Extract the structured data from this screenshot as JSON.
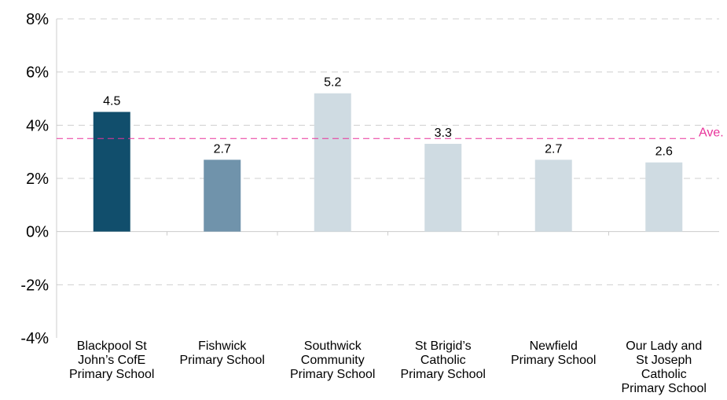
{
  "chart_data": {
    "type": "bar",
    "categories": [
      [
        "Blackpool St",
        "John’s CofE",
        "Primary School"
      ],
      [
        "Fishwick",
        "Primary School"
      ],
      [
        "Southwick",
        "Community",
        "Primary School"
      ],
      [
        "St Brigid’s",
        "Catholic",
        "Primary School"
      ],
      [
        "Newfield",
        "Primary School"
      ],
      [
        "Our Lady and",
        "St Joseph",
        "Catholic",
        "Primary School"
      ]
    ],
    "values": [
      4.5,
      2.7,
      5.2,
      3.3,
      2.7,
      2.6
    ],
    "value_labels": [
      "4.5",
      "2.7",
      "5.2",
      "3.3",
      "2.7",
      "2.6"
    ],
    "bar_colors": [
      "#114e6c",
      "#7093ab",
      "#cfdbe2",
      "#cfdbe2",
      "#cfdbe2",
      "#cfdbe2"
    ],
    "yticks": [
      8,
      6,
      4,
      2,
      0,
      -2,
      -4
    ],
    "ytick_labels": [
      "8%",
      "6%",
      "4%",
      "2%",
      "0%",
      "-2%",
      "-4%"
    ],
    "ylim": [
      -4,
      8
    ],
    "grid": true,
    "reference_line": {
      "value": 3.5,
      "label": "Ave.",
      "color": "#e8339a"
    }
  }
}
